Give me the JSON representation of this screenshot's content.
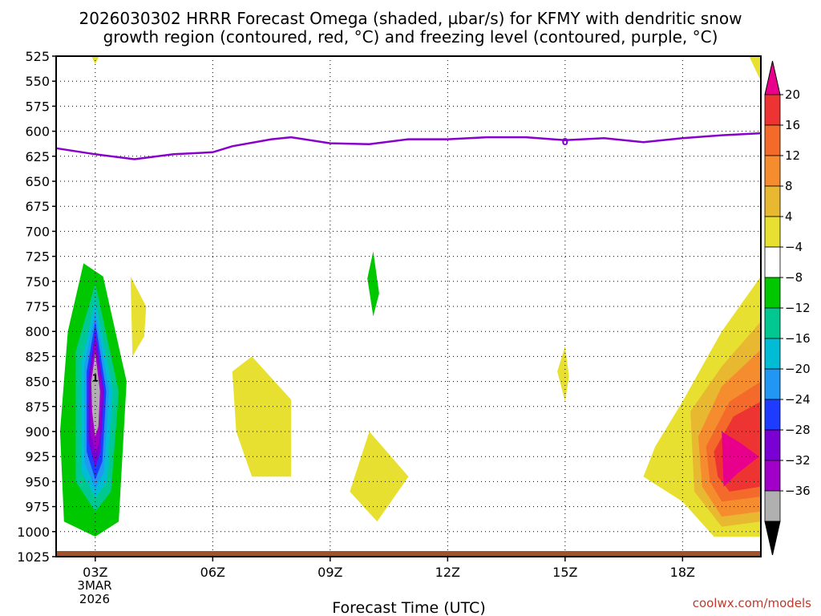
{
  "chart_data": {
    "type": "contour",
    "title_line1": "2026030302 HRRR Forecast Omega (shaded, µbar/s) for KFMY with dendritic snow",
    "title_line2": "growth region (contoured, red, °C) and freezing level (contoured, purple, °C)",
    "xlabel": "Forecast Time (UTC)",
    "credit": "coolwx.com/models",
    "x_range": [
      2,
      20
    ],
    "y_range": [
      1025,
      525
    ],
    "y_ticks": [
      525,
      550,
      575,
      600,
      625,
      650,
      675,
      700,
      725,
      750,
      775,
      800,
      825,
      850,
      875,
      900,
      925,
      950,
      975,
      1000,
      1025
    ],
    "x_ticks": [
      {
        "hour": 3,
        "label": "03Z"
      },
      {
        "hour": 6,
        "label": "06Z"
      },
      {
        "hour": 9,
        "label": "09Z"
      },
      {
        "hour": 12,
        "label": "12Z"
      },
      {
        "hour": 15,
        "label": "15Z"
      },
      {
        "hour": 18,
        "label": "18Z"
      }
    ],
    "date_line1": "3MAR",
    "date_line2": "2026",
    "colorbar": {
      "boundaries": [
        -36,
        -32,
        -28,
        -24,
        -20,
        -16,
        -12,
        -8,
        -4,
        4,
        8,
        12,
        16,
        20
      ],
      "labels": [
        "20",
        "16",
        "12",
        "8",
        "4",
        "−4",
        "−8",
        "−12",
        "−16",
        "−20",
        "−24",
        "−28",
        "−32",
        "−36"
      ],
      "colors_top_to_bottom": [
        "#e8008c",
        "#ee3333",
        "#f36a2a",
        "#f58d2f",
        "#e8b830",
        "#e8e030",
        "#ffffff",
        "#00c800",
        "#00c890",
        "#00bcd4",
        "#2196f3",
        "#1e3cff",
        "#7a00d4",
        "#a000c8",
        "#b0b0b0",
        "#000000"
      ]
    },
    "freezing_level": {
      "label": "0",
      "points": [
        {
          "hour": 2.0,
          "p": 617
        },
        {
          "hour": 3.0,
          "p": 623
        },
        {
          "hour": 4.0,
          "p": 628
        },
        {
          "hour": 5.0,
          "p": 623
        },
        {
          "hour": 6.0,
          "p": 621
        },
        {
          "hour": 6.5,
          "p": 615
        },
        {
          "hour": 7.5,
          "p": 608
        },
        {
          "hour": 8.0,
          "p": 606
        },
        {
          "hour": 9.0,
          "p": 612
        },
        {
          "hour": 10.0,
          "p": 613
        },
        {
          "hour": 11.0,
          "p": 608
        },
        {
          "hour": 12.0,
          "p": 608
        },
        {
          "hour": 13.0,
          "p": 606
        },
        {
          "hour": 14.0,
          "p": 606
        },
        {
          "hour": 15.0,
          "p": 609
        },
        {
          "hour": 16.0,
          "p": 607
        },
        {
          "hour": 17.0,
          "p": 611
        },
        {
          "hour": 18.0,
          "p": 607
        },
        {
          "hour": 19.0,
          "p": 604
        },
        {
          "hour": 20.0,
          "p": 602
        }
      ]
    },
    "omega_features": [
      {
        "name": "ascent-core-03z",
        "color": "#00c800",
        "points": [
          {
            "hour": 2.3,
            "p": 800
          },
          {
            "hour": 2.7,
            "p": 732
          },
          {
            "hour": 3.2,
            "p": 745
          },
          {
            "hour": 3.8,
            "p": 850
          },
          {
            "hour": 3.6,
            "p": 990
          },
          {
            "hour": 3.0,
            "p": 1005
          },
          {
            "hour": 2.2,
            "p": 990
          },
          {
            "hour": 2.1,
            "p": 900
          }
        ]
      },
      {
        "name": "ascent-ring-2",
        "color": "#00c890",
        "points": [
          {
            "hour": 2.5,
            "p": 820
          },
          {
            "hour": 3.0,
            "p": 752
          },
          {
            "hour": 3.6,
            "p": 860
          },
          {
            "hour": 3.4,
            "p": 960
          },
          {
            "hour": 3.0,
            "p": 980
          },
          {
            "hour": 2.5,
            "p": 950
          }
        ]
      },
      {
        "name": "ascent-ring-3",
        "color": "#00bcd4",
        "points": [
          {
            "hour": 2.65,
            "p": 830
          },
          {
            "hour": 3.0,
            "p": 768
          },
          {
            "hour": 3.45,
            "p": 860
          },
          {
            "hour": 3.3,
            "p": 950
          },
          {
            "hour": 3.0,
            "p": 966
          },
          {
            "hour": 2.65,
            "p": 940
          }
        ]
      },
      {
        "name": "ascent-ring-4",
        "color": "#2196f3",
        "points": [
          {
            "hour": 2.72,
            "p": 835
          },
          {
            "hour": 3.0,
            "p": 780
          },
          {
            "hour": 3.35,
            "p": 860
          },
          {
            "hour": 3.22,
            "p": 940
          },
          {
            "hour": 3.0,
            "p": 958
          },
          {
            "hour": 2.72,
            "p": 930
          }
        ]
      },
      {
        "name": "ascent-ring-5",
        "color": "#1e3cff",
        "points": [
          {
            "hour": 2.78,
            "p": 840
          },
          {
            "hour": 3.0,
            "p": 790
          },
          {
            "hour": 3.28,
            "p": 860
          },
          {
            "hour": 3.18,
            "p": 930
          },
          {
            "hour": 3.0,
            "p": 948
          },
          {
            "hour": 2.78,
            "p": 920
          }
        ]
      },
      {
        "name": "ascent-ring-6",
        "color": "#7a00d4",
        "points": [
          {
            "hour": 2.83,
            "p": 845
          },
          {
            "hour": 3.0,
            "p": 800
          },
          {
            "hour": 3.22,
            "p": 860
          },
          {
            "hour": 3.13,
            "p": 920
          },
          {
            "hour": 3.0,
            "p": 936
          },
          {
            "hour": 2.83,
            "p": 910
          }
        ]
      },
      {
        "name": "ascent-ring-7",
        "color": "#a000c8",
        "points": [
          {
            "hour": 2.87,
            "p": 848
          },
          {
            "hour": 3.0,
            "p": 812
          },
          {
            "hour": 3.17,
            "p": 860
          },
          {
            "hour": 3.1,
            "p": 910
          },
          {
            "hour": 3.0,
            "p": 922
          },
          {
            "hour": 2.87,
            "p": 900
          }
        ]
      },
      {
        "name": "ascent-max-gray",
        "color": "#b0b0b0",
        "points": [
          {
            "hour": 2.9,
            "p": 850
          },
          {
            "hour": 3.0,
            "p": 822
          },
          {
            "hour": 3.12,
            "p": 860
          },
          {
            "hour": 3.08,
            "p": 895
          },
          {
            "hour": 3.0,
            "p": 905
          },
          {
            "hour": 2.92,
            "p": 880
          }
        ]
      },
      {
        "name": "weak-ascent-10z",
        "color": "#00c800",
        "points": [
          {
            "hour": 9.95,
            "p": 747
          },
          {
            "hour": 10.1,
            "p": 720
          },
          {
            "hour": 10.25,
            "p": 762
          },
          {
            "hour": 10.1,
            "p": 785
          }
        ]
      },
      {
        "name": "sink-top-03z",
        "color": "#e8e030",
        "points": [
          {
            "hour": 2.9,
            "p": 525
          },
          {
            "hour": 3.1,
            "p": 525
          },
          {
            "hour": 3.0,
            "p": 533
          }
        ]
      },
      {
        "name": "sink-0330z",
        "color": "#e8e030",
        "points": [
          {
            "hour": 3.9,
            "p": 745
          },
          {
            "hour": 4.3,
            "p": 775
          },
          {
            "hour": 4.25,
            "p": 805
          },
          {
            "hour": 3.95,
            "p": 825
          }
        ]
      },
      {
        "name": "sink-07z",
        "color": "#e8e030",
        "points": [
          {
            "hour": 6.5,
            "p": 840
          },
          {
            "hour": 7.0,
            "p": 825
          },
          {
            "hour": 8.0,
            "p": 868
          },
          {
            "hour": 8.0,
            "p": 945
          },
          {
            "hour": 7.0,
            "p": 945
          },
          {
            "hour": 6.6,
            "p": 900
          }
        ]
      },
      {
        "name": "sink-10z",
        "color": "#e8e030",
        "points": [
          {
            "hour": 10.0,
            "p": 900
          },
          {
            "hour": 11.0,
            "p": 945
          },
          {
            "hour": 10.2,
            "p": 990
          },
          {
            "hour": 9.5,
            "p": 960
          }
        ]
      },
      {
        "name": "sink-15z",
        "color": "#e8e030",
        "points": [
          {
            "hour": 14.8,
            "p": 840
          },
          {
            "hour": 15.0,
            "p": 815
          },
          {
            "hour": 15.1,
            "p": 845
          },
          {
            "hour": 15.0,
            "p": 870
          }
        ]
      },
      {
        "name": "sink-top-20z",
        "color": "#e8e030",
        "points": [
          {
            "hour": 19.7,
            "p": 525
          },
          {
            "hour": 20.0,
            "p": 525
          },
          {
            "hour": 20.0,
            "p": 550
          }
        ]
      },
      {
        "name": "sink-19z-1",
        "color": "#e8e030",
        "points": [
          {
            "hour": 17.0,
            "p": 945
          },
          {
            "hour": 17.3,
            "p": 915
          },
          {
            "hour": 18.0,
            "p": 870
          },
          {
            "hour": 19.0,
            "p": 800
          },
          {
            "hour": 20.0,
            "p": 745
          },
          {
            "hour": 20.0,
            "p": 1005
          },
          {
            "hour": 18.8,
            "p": 1005
          },
          {
            "hour": 18.0,
            "p": 970
          }
        ]
      },
      {
        "name": "sink-19z-2",
        "color": "#e8b830",
        "points": [
          {
            "hour": 18.2,
            "p": 880
          },
          {
            "hour": 19.0,
            "p": 835
          },
          {
            "hour": 20.0,
            "p": 790
          },
          {
            "hour": 20.0,
            "p": 990
          },
          {
            "hour": 19.0,
            "p": 995
          },
          {
            "hour": 18.3,
            "p": 960
          }
        ]
      },
      {
        "name": "sink-19z-3",
        "color": "#f58d2f",
        "points": [
          {
            "hour": 18.4,
            "p": 905
          },
          {
            "hour": 19.0,
            "p": 855
          },
          {
            "hour": 20.0,
            "p": 818
          },
          {
            "hour": 20.0,
            "p": 980
          },
          {
            "hour": 19.0,
            "p": 985
          },
          {
            "hour": 18.5,
            "p": 955
          }
        ]
      },
      {
        "name": "sink-19z-4",
        "color": "#f36a2a",
        "points": [
          {
            "hour": 18.6,
            "p": 915
          },
          {
            "hour": 19.2,
            "p": 870
          },
          {
            "hour": 20.0,
            "p": 850
          },
          {
            "hour": 20.0,
            "p": 965
          },
          {
            "hour": 19.0,
            "p": 970
          },
          {
            "hour": 18.7,
            "p": 950
          }
        ]
      },
      {
        "name": "sink-19z-5",
        "color": "#ee3333",
        "points": [
          {
            "hour": 18.8,
            "p": 920
          },
          {
            "hour": 19.3,
            "p": 885
          },
          {
            "hour": 20.0,
            "p": 870
          },
          {
            "hour": 20.0,
            "p": 955
          },
          {
            "hour": 19.2,
            "p": 960
          },
          {
            "hour": 18.9,
            "p": 945
          }
        ]
      },
      {
        "name": "sink-max-19z",
        "color": "#e8008c",
        "points": [
          {
            "hour": 19.0,
            "p": 900
          },
          {
            "hour": 19.5,
            "p": 912
          },
          {
            "hour": 19.95,
            "p": 925
          },
          {
            "hour": 19.4,
            "p": 942
          },
          {
            "hour": 19.05,
            "p": 955
          }
        ]
      }
    ],
    "labels_on_plot": [
      {
        "text": "1",
        "hour": 3.0,
        "p": 846
      }
    ]
  }
}
